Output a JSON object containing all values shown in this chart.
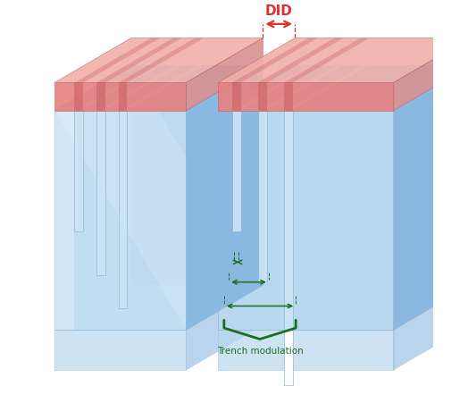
{
  "bg_color": "#ffffff",
  "blue_front": "#b8d8f0",
  "blue_front2": "#a8ccec",
  "blue_side": "#8bb8e0",
  "blue_top": "#9dc8e8",
  "blue_inner": "#cce4f5",
  "blue_deep": "#6699cc",
  "red_front": "#e88080",
  "red_top": "#f0b0a8",
  "red_groove": "#c86060",
  "red_side": "#d89090",
  "green_arrow": "#1a6e1a",
  "red_did": "#e03030",
  "DID_label": "DID",
  "trench_label": "Trench modulation",
  "figsize": [
    5.24,
    4.51
  ],
  "dpi": 100
}
